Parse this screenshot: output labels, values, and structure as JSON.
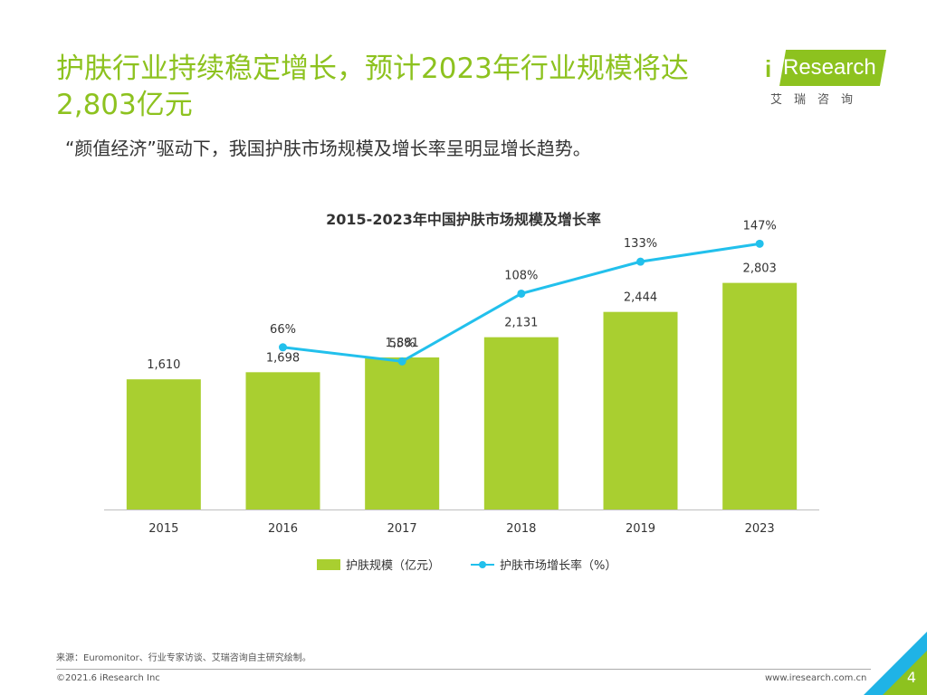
{
  "header": {
    "title": "护肤行业持续稳定增长，预计2023年行业规模将达2,803亿元",
    "subtitle": "“颜值经济”驱动下，我国护肤市场规模及增长率呈明显增长趋势。"
  },
  "logo": {
    "wordmark": "Research",
    "i_letter": "i",
    "chinese": "艾瑞咨询"
  },
  "chart_data": {
    "type": "bar",
    "title": "2015-2023年中国护肤市场规模及增长率",
    "categories": [
      "2015",
      "2016",
      "2017",
      "2018",
      "2019",
      "2023"
    ],
    "series": [
      {
        "name": "护肤规模（亿元）",
        "kind": "bar",
        "values": [
          1610,
          1698,
          1881,
          2131,
          2444,
          2803
        ],
        "labels": [
          "1,610",
          "1,698",
          "1,881",
          "2,131",
          "2,444",
          "2,803"
        ]
      },
      {
        "name": "护肤市场增长率（%）",
        "kind": "line",
        "values": [
          null,
          66,
          55,
          108,
          133,
          147
        ],
        "labels": [
          "",
          "66%",
          "55%",
          "108%",
          "133%",
          "147%"
        ]
      }
    ],
    "bar_ylim": [
      0,
      3000
    ],
    "line_ylim": [
      0,
      160
    ],
    "xlabel": "",
    "ylabel": "",
    "grid": false,
    "legend": "bottom",
    "colors": {
      "bar": "#a9cf30",
      "line": "#22c0ec",
      "axis": "#bfbfbf",
      "text": "#333333"
    }
  },
  "legend": {
    "bar_label": "护肤规模（亿元）",
    "line_label": "护肤市场增长率（%）"
  },
  "footer": {
    "source": "来源：Euromonitor、行业专家访谈、艾瑞咨询自主研究绘制。",
    "copyright": "©2021.6 iResearch Inc",
    "website": "www.iresearch.com.cn",
    "page_number": "4"
  }
}
